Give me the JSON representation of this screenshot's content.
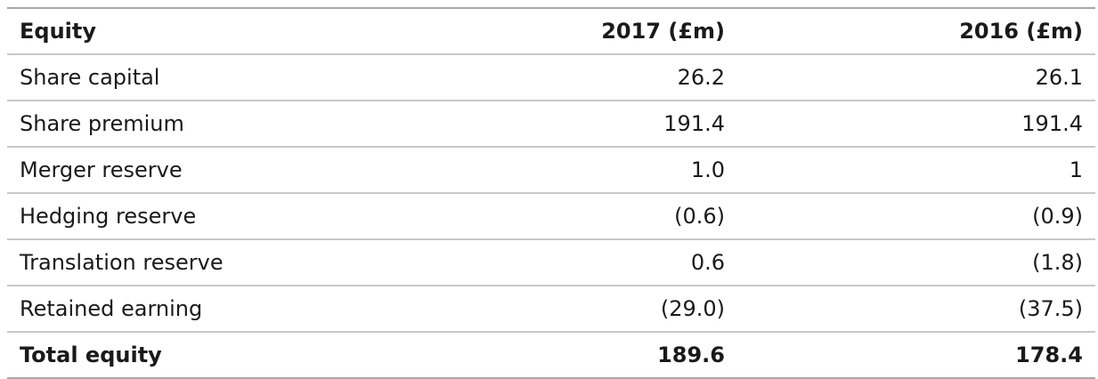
{
  "table": {
    "header": {
      "label": "Equity",
      "col_2017": "2017 (£m)",
      "col_2016": "2016 (£m)"
    },
    "rows": [
      {
        "label": "Share capital",
        "v2017": "26.2",
        "v2016": "26.1"
      },
      {
        "label": "Share premium",
        "v2017": "191.4",
        "v2016": "191.4"
      },
      {
        "label": "Merger reserve",
        "v2017": "1.0",
        "v2016": "1"
      },
      {
        "label": "Hedging reserve",
        "v2017": "(0.6)",
        "v2016": "(0.9)"
      },
      {
        "label": "Translation reserve",
        "v2017": "0.6",
        "v2016": "(1.8)"
      },
      {
        "label": "Retained earning",
        "v2017": "(29.0)",
        "v2016": "(37.5)"
      }
    ],
    "total": {
      "label": "Total equity",
      "v2017": "189.6",
      "v2016": "178.4"
    }
  }
}
